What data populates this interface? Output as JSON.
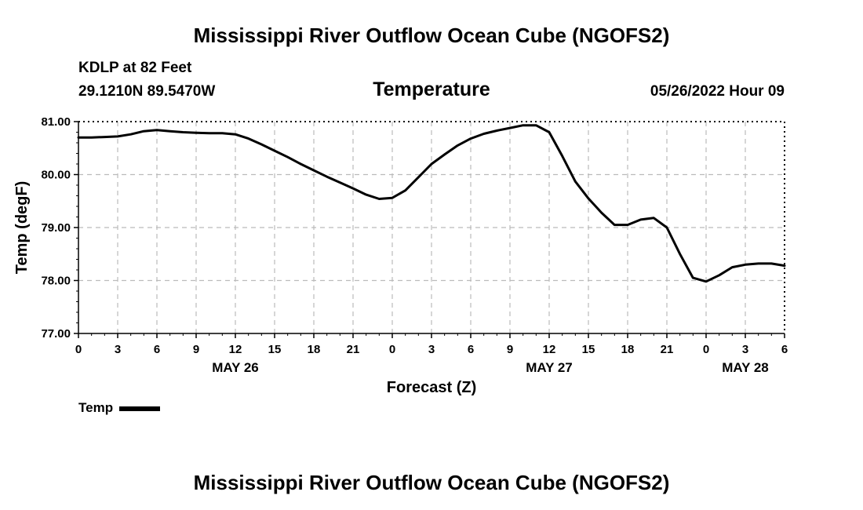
{
  "header": {
    "title": "Mississippi River Outflow Ocean Cube (NGOFS2)",
    "station": "KDLP at 82 Feet",
    "coords": "29.1210N  89.5470W",
    "variable": "Temperature",
    "datetime": "05/26/2022 Hour 09"
  },
  "footer": {
    "title": "Mississippi River Outflow Ocean Cube (NGOFS2)"
  },
  "legend": {
    "label": "Temp"
  },
  "colors": {
    "line": "#000000",
    "grid": "#bbbbbb"
  },
  "chart_data": {
    "type": "line",
    "title": "Temperature",
    "xlabel": "Forecast (Z)",
    "ylabel": "Temp (degF)",
    "xlim": [
      0,
      54
    ],
    "ylim": [
      77.0,
      81.0
    ],
    "yticks": [
      77.0,
      78.0,
      79.0,
      80.0,
      81.0
    ],
    "ytick_labels": [
      "77.00",
      "78.00",
      "79.00",
      "80.00",
      "81.00"
    ],
    "xticks": [
      0,
      3,
      6,
      9,
      12,
      15,
      18,
      21,
      24,
      27,
      30,
      33,
      36,
      39,
      42,
      45,
      48,
      51,
      54
    ],
    "xtick_labels": [
      "0",
      "3",
      "6",
      "9",
      "12",
      "15",
      "18",
      "21",
      "0",
      "3",
      "6",
      "9",
      "12",
      "15",
      "18",
      "21",
      "0",
      "3",
      "6"
    ],
    "day_labels": [
      {
        "x": 12,
        "label": "MAY 26"
      },
      {
        "x": 36,
        "label": "MAY 27"
      },
      {
        "x": 51,
        "label": "MAY 28"
      }
    ],
    "grid": true,
    "legend_position": "bottom-left",
    "series": [
      {
        "name": "Temp",
        "x": [
          0,
          1,
          2,
          3,
          4,
          5,
          6,
          7,
          8,
          9,
          10,
          11,
          12,
          13,
          14,
          15,
          16,
          17,
          18,
          19,
          20,
          21,
          22,
          23,
          24,
          25,
          26,
          27,
          28,
          29,
          30,
          31,
          32,
          33,
          34,
          35,
          36,
          37,
          38,
          39,
          40,
          41,
          42,
          43,
          44,
          45,
          46,
          47,
          48,
          49,
          50,
          51,
          52,
          53,
          54
        ],
        "values": [
          80.7,
          80.7,
          80.71,
          80.72,
          80.76,
          80.82,
          80.84,
          80.82,
          80.8,
          80.79,
          80.78,
          80.78,
          80.76,
          80.68,
          80.57,
          80.45,
          80.33,
          80.2,
          80.08,
          79.96,
          79.85,
          79.74,
          79.62,
          79.54,
          79.56,
          79.7,
          79.95,
          80.2,
          80.38,
          80.55,
          80.68,
          80.77,
          80.83,
          80.88,
          80.93,
          80.93,
          80.8,
          80.35,
          79.87,
          79.55,
          79.28,
          79.05,
          79.05,
          79.15,
          79.18,
          79.0,
          78.5,
          78.05,
          77.98,
          78.1,
          78.25,
          78.3,
          78.32,
          78.32,
          78.28
        ]
      }
    ]
  }
}
